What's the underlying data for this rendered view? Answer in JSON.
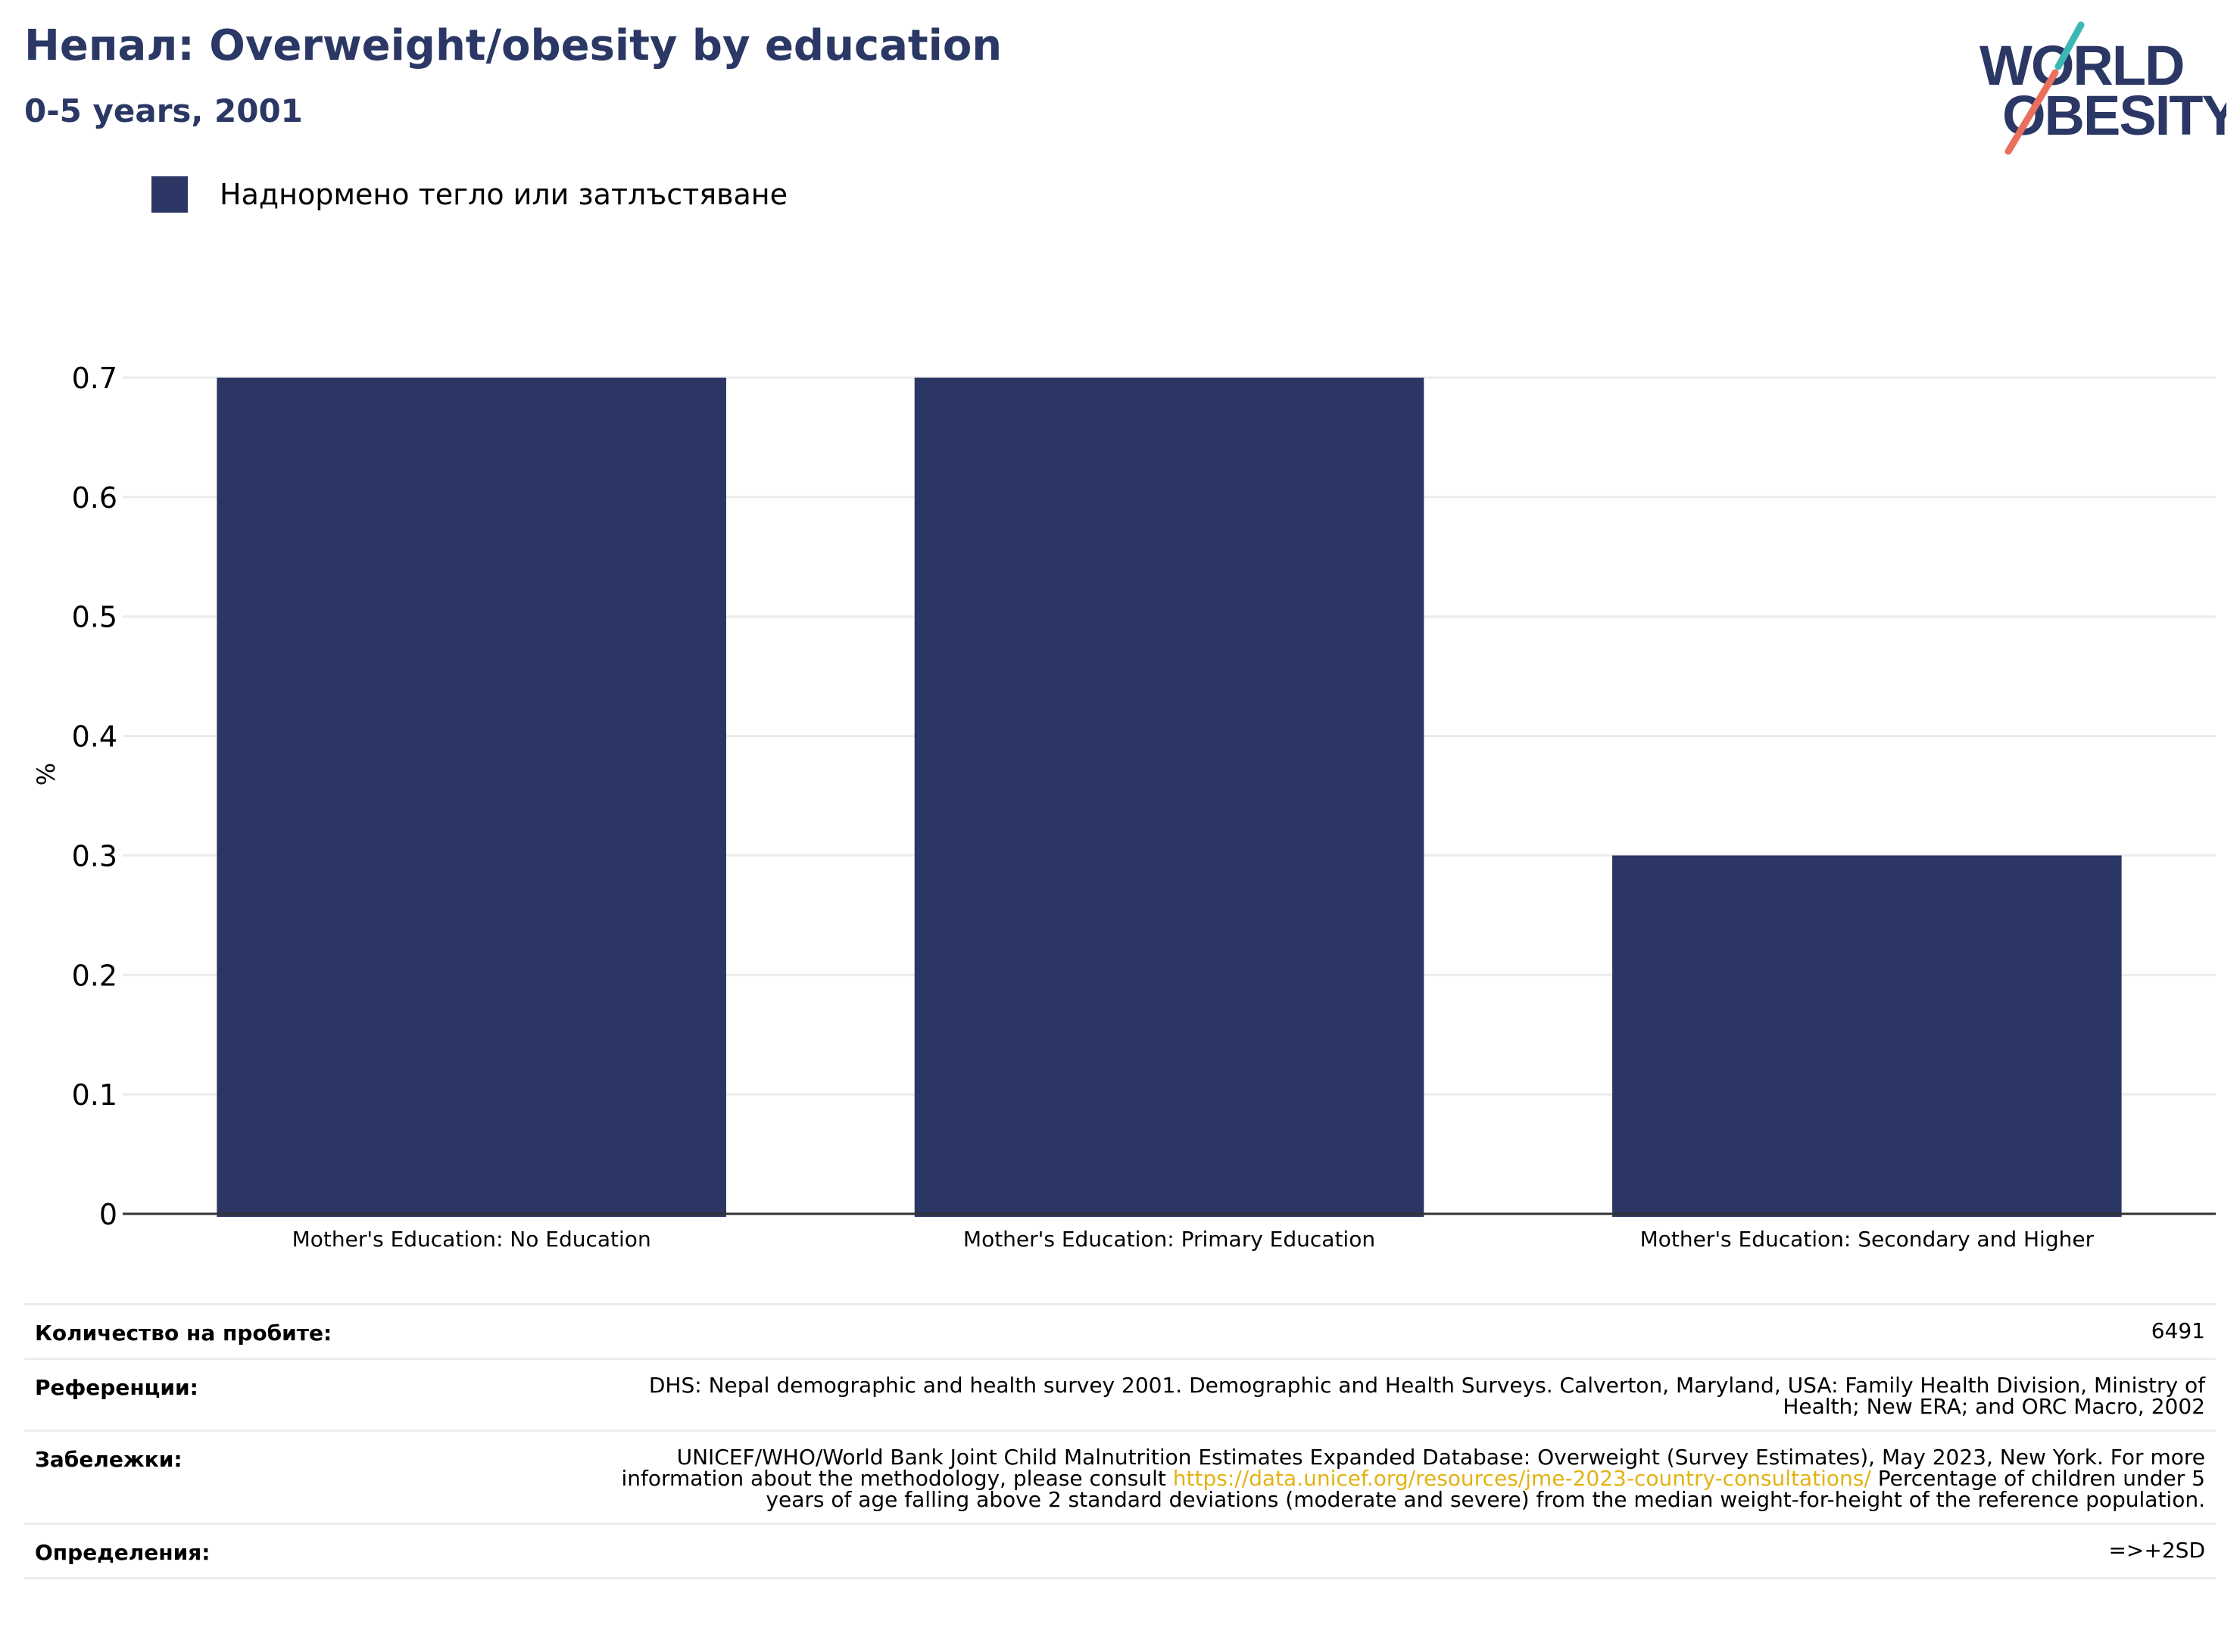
{
  "header": {
    "title": "Непал: Overweight/obesity by education",
    "subtitle": "0-5 years, 2001"
  },
  "logo": {
    "line1": "WORLD",
    "line2": "OBESITY",
    "colors": {
      "text": "#2b3764",
      "slash_top": "#3bb8b4",
      "slash_bottom": "#e8705d"
    }
  },
  "legend": {
    "label": "Наднормено тегло или затлъстяване",
    "color": "#2b3664"
  },
  "chart_data": {
    "type": "bar",
    "categories": [
      "Mother's Education: No Education",
      "Mother's Education: Primary Education",
      "Mother's Education: Secondary and Higher"
    ],
    "series": [
      {
        "name": "Наднормено тегло или затлъстяване",
        "values": [
          0.7,
          0.7,
          0.3
        ],
        "color": "#2b3664"
      }
    ],
    "ylabel": "%",
    "xlabel": "",
    "ylim": [
      0,
      0.7
    ],
    "yticks": [
      0,
      0.1,
      0.2,
      0.3,
      0.4,
      0.5,
      0.6,
      0.7
    ],
    "grid": true,
    "legend_position": "top-left"
  },
  "notes": {
    "sample_size": {
      "label": "Количество на пробите:",
      "value": "6491"
    },
    "references": {
      "label": "Референции:",
      "value": "DHS: Nepal demographic and health survey 2001. Demographic and Health Surveys. Calverton, Maryland, USA: Family Health Division, Ministry of Health; New ERA; and ORC Macro, 2002"
    },
    "remarks": {
      "label": "Забележки:",
      "text_before": "UNICEF/WHO/World Bank Joint Child Malnutrition Estimates Expanded Database: Overweight (Survey Estimates), May 2023, New York. For more information about the methodology, please consult",
      "link": "https://data.unicef.org/resources/jme-2023-country-consultations/",
      "text_after": "Percentage of children under 5 years of age falling above 2 standard deviations (moderate and severe) from the median weight-for-height of the reference population."
    },
    "definitions": {
      "label": "Определения:",
      "value": "=>+2SD"
    }
  }
}
